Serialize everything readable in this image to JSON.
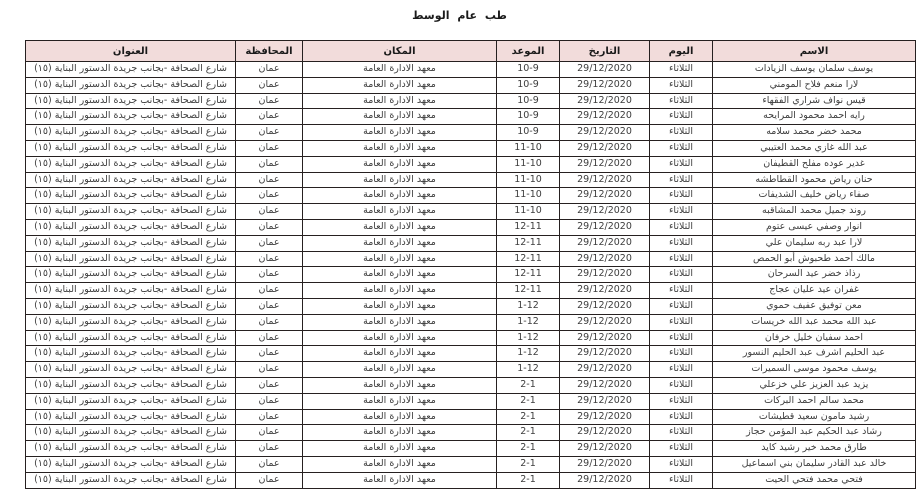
{
  "title": "طب عام الوسط",
  "colors": {
    "header_bg": "#f2dcdb",
    "border": "#262020",
    "text": "#3d3d3d",
    "numbers": "#1a1a1a"
  },
  "table": {
    "headers": {
      "name": "الاسم",
      "day": "اليوم",
      "date": "التاريخ",
      "time": "الموعد",
      "place": "المكان",
      "governorate": "المحافظة",
      "address": "العنوان"
    },
    "shared": {
      "day": "الثلاثاء",
      "date": "29/12/2020",
      "place": "معهد الادارة العامة",
      "governorate": "عمان",
      "address": "شارع الصحافة -بجانب جريدة الدستور البناية (١٥)"
    },
    "rows": [
      {
        "name": "يوسف سلمان يوسف الزيادات",
        "time": "10-9"
      },
      {
        "name": "لارا منعم فلاح المومني",
        "time": "10-9"
      },
      {
        "name": "قيس نواف شراري الفقهاء",
        "time": "10-9"
      },
      {
        "name": "رايه احمد محمود المرايحه",
        "time": "10-9"
      },
      {
        "name": "محمد خضر محمد سلامه",
        "time": "10-9"
      },
      {
        "name": "عبد الله غازي محمد العتيبي",
        "time": "11-10"
      },
      {
        "name": "غدير عوده مفلح القطيفان",
        "time": "11-10"
      },
      {
        "name": "حنان رياض محمود القطاطشه",
        "time": "11-10"
      },
      {
        "name": "صفاء رياض خليف الشديفات",
        "time": "11-10"
      },
      {
        "name": "روند جميل محمد المشاقبه",
        "time": "11-10"
      },
      {
        "name": "انوار وصفي عيسى عتوم",
        "time": "12-11"
      },
      {
        "name": "لارا عبد ربه سليمان علي",
        "time": "12-11"
      },
      {
        "name": "مالك أحمد طحبوش أبو الحمص",
        "time": "12-11"
      },
      {
        "name": "رذاذ خضر عيد السرحان",
        "time": "12-11"
      },
      {
        "name": "غفران عيد عليان عجاج",
        "time": "12-11"
      },
      {
        "name": "معن توفيق عفيف حموي",
        "time": "1-12"
      },
      {
        "name": "عبد الله محمد عبد الله خريسات",
        "time": "1-12"
      },
      {
        "name": "احمد سفيان خليل خرفان",
        "time": "1-12"
      },
      {
        "name": "عبد الحليم اشرف عبد الحليم النسور",
        "time": "1-12"
      },
      {
        "name": "يوسف محمود موسى السميرات",
        "time": "1-12"
      },
      {
        "name": "يزيد عبد العزيز علي خزعلي",
        "time": "2-1"
      },
      {
        "name": "محمد سالم احمد البركات",
        "time": "2-1"
      },
      {
        "name": "رشيد مامون سعيد قطيشات",
        "time": "2-1"
      },
      {
        "name": "رشاد عبد الحكيم عبد المؤمن حجاز",
        "time": "2-1"
      },
      {
        "name": "طارق محمد خير رشيد كايد",
        "time": "2-1"
      },
      {
        "name": "خالد عبد القادر سليمان بني اسماعيل",
        "time": "2-1"
      },
      {
        "name": "فتحي محمد فتحي الحيت",
        "time": "2-1"
      }
    ]
  }
}
